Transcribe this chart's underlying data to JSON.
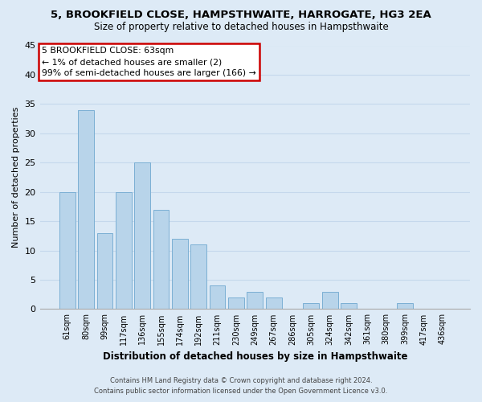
{
  "title1": "5, BROOKFIELD CLOSE, HAMPSTHWAITE, HARROGATE, HG3 2EA",
  "title2": "Size of property relative to detached houses in Hampsthwaite",
  "xlabel": "Distribution of detached houses by size in Hampsthwaite",
  "ylabel": "Number of detached properties",
  "bin_labels": [
    "61sqm",
    "80sqm",
    "99sqm",
    "117sqm",
    "136sqm",
    "155sqm",
    "174sqm",
    "192sqm",
    "211sqm",
    "230sqm",
    "249sqm",
    "267sqm",
    "286sqm",
    "305sqm",
    "324sqm",
    "342sqm",
    "361sqm",
    "380sqm",
    "399sqm",
    "417sqm",
    "436sqm"
  ],
  "bar_values": [
    20,
    34,
    13,
    20,
    25,
    17,
    12,
    11,
    4,
    2,
    3,
    2,
    0,
    1,
    3,
    1,
    0,
    0,
    1,
    0,
    0
  ],
  "bar_color": "#b8d4ea",
  "bar_edge_color": "#7bafd4",
  "ylim": [
    0,
    45
  ],
  "yticks": [
    0,
    5,
    10,
    15,
    20,
    25,
    30,
    35,
    40,
    45
  ],
  "annotation_title": "5 BROOKFIELD CLOSE: 63sqm",
  "annotation_line1": "← 1% of detached houses are smaller (2)",
  "annotation_line2": "99% of semi-detached houses are larger (166) →",
  "annotation_box_facecolor": "#ffffff",
  "annotation_box_edgecolor": "#cc0000",
  "footer1": "Contains HM Land Registry data © Crown copyright and database right 2024.",
  "footer2": "Contains public sector information licensed under the Open Government Licence v3.0.",
  "bg_color": "#ddeaf6",
  "plot_bg_color": "#ddeaf6",
  "grid_color": "#c5d8ec"
}
